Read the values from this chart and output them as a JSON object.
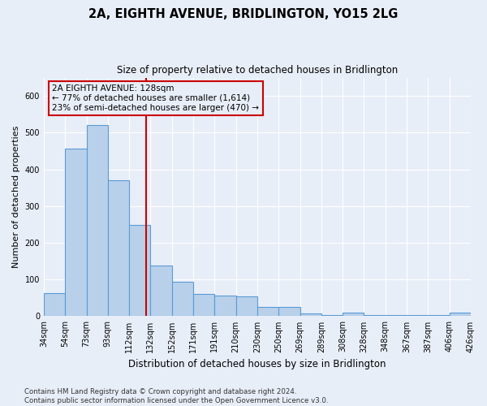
{
  "title": "2A, EIGHTH AVENUE, BRIDLINGTON, YO15 2LG",
  "subtitle": "Size of property relative to detached houses in Bridlington",
  "xlabel": "Distribution of detached houses by size in Bridlington",
  "ylabel": "Number of detached properties",
  "footnote": "Contains HM Land Registry data © Crown copyright and database right 2024.\nContains public sector information licensed under the Open Government Licence v3.0.",
  "bar_labels": [
    "34sqm",
    "54sqm",
    "73sqm",
    "93sqm",
    "112sqm",
    "132sqm",
    "152sqm",
    "171sqm",
    "191sqm",
    "210sqm",
    "230sqm",
    "250sqm",
    "269sqm",
    "289sqm",
    "308sqm",
    "328sqm",
    "348sqm",
    "367sqm",
    "387sqm",
    "406sqm",
    "426sqm"
  ],
  "bar_values": [
    62,
    457,
    521,
    370,
    248,
    139,
    94,
    60,
    57,
    55,
    25,
    25,
    8,
    4,
    10,
    4,
    4,
    4,
    4,
    10
  ],
  "bar_color": "#b8d0ea",
  "bar_edge_color": "#5b9bd5",
  "background_color": "#e8eef8",
  "grid_color": "#ffffff",
  "annotation_text_line1": "2A EIGHTH AVENUE: 128sqm",
  "annotation_text_line2": "← 77% of detached houses are smaller (1,614)",
  "annotation_text_line3": "23% of semi-detached houses are larger (470) →",
  "red_line_color": "#cc0000",
  "ylim": [
    0,
    650
  ],
  "figsize": [
    6.0,
    5.0
  ],
  "dpi": 100
}
